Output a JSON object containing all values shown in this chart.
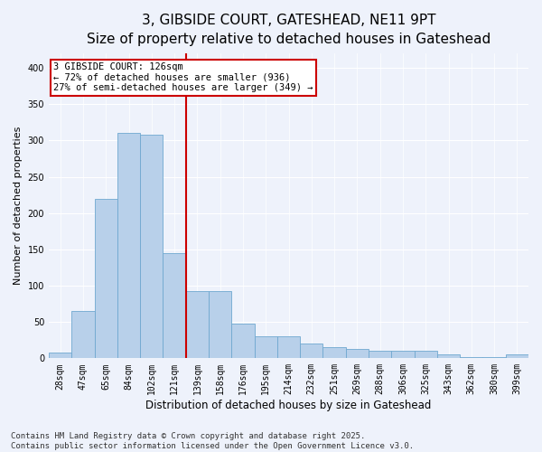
{
  "title_line1": "3, GIBSIDE COURT, GATESHEAD, NE11 9PT",
  "title_line2": "Size of property relative to detached houses in Gateshead",
  "xlabel": "Distribution of detached houses by size in Gateshead",
  "ylabel": "Number of detached properties",
  "categories": [
    "28sqm",
    "47sqm",
    "65sqm",
    "84sqm",
    "102sqm",
    "121sqm",
    "139sqm",
    "158sqm",
    "176sqm",
    "195sqm",
    "214sqm",
    "232sqm",
    "251sqm",
    "269sqm",
    "288sqm",
    "306sqm",
    "325sqm",
    "343sqm",
    "362sqm",
    "380sqm",
    "399sqm"
  ],
  "values": [
    8,
    65,
    220,
    310,
    308,
    145,
    93,
    93,
    48,
    30,
    30,
    20,
    15,
    13,
    11,
    10,
    10,
    5,
    2,
    2,
    5
  ],
  "bar_color": "#b8d0ea",
  "bar_edge_color": "#6fa8d0",
  "background_color": "#eef2fb",
  "grid_color": "#ffffff",
  "vline_x_index": 5,
  "vline_color": "#cc0000",
  "annotation_box_text": "3 GIBSIDE COURT: 126sqm\n← 72% of detached houses are smaller (936)\n27% of semi-detached houses are larger (349) →",
  "annotation_box_color": "#cc0000",
  "annotation_box_facecolor": "white",
  "ylim": [
    0,
    420
  ],
  "yticks": [
    0,
    50,
    100,
    150,
    200,
    250,
    300,
    350,
    400
  ],
  "footnote": "Contains HM Land Registry data © Crown copyright and database right 2025.\nContains public sector information licensed under the Open Government Licence v3.0.",
  "title_fontsize": 11,
  "subtitle_fontsize": 9.5,
  "ylabel_fontsize": 8,
  "xlabel_fontsize": 8.5,
  "tick_fontsize": 7,
  "annotation_fontsize": 7.5,
  "footnote_fontsize": 6.5
}
